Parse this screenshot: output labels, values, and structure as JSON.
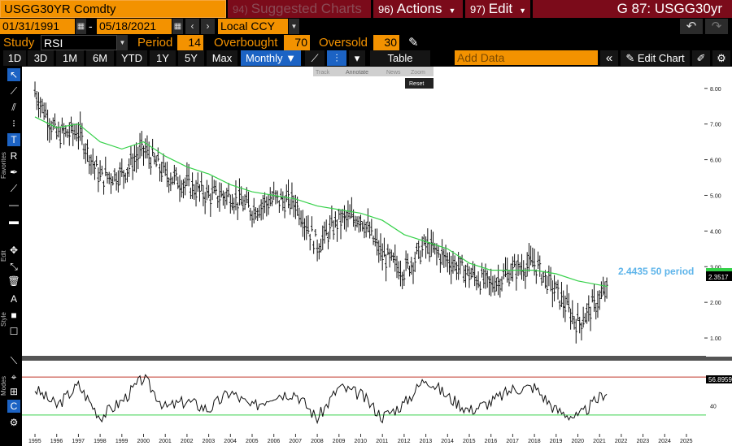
{
  "header": {
    "ticker": "USGG30YR Comdty",
    "suggested_num": "94)",
    "suggested": "Suggested Charts",
    "actions_num": "96)",
    "actions": "Actions",
    "edit_num": "97)",
    "edit": "Edit",
    "security": "G 87: USGG30yr"
  },
  "range": {
    "start": "01/31/1991",
    "sep": "-",
    "end": "05/18/2021",
    "currency": "Local CCY"
  },
  "study": {
    "study_label": "Study",
    "study_value": "RSI",
    "period_label": "Period",
    "period_value": "14",
    "overbought_label": "Overbought",
    "overbought_value": "70",
    "oversold_label": "Oversold",
    "oversold_value": "30"
  },
  "toolbar": {
    "periods": [
      "1D",
      "3D",
      "1M",
      "6M",
      "YTD",
      "1Y",
      "5Y",
      "Max"
    ],
    "frequency": "Monthly",
    "table": "Table",
    "add_data_placeholder": "Add Data",
    "edit_chart": "Edit Chart"
  },
  "zoom_toolbar": {
    "track": "Track",
    "annotate": "Annotate",
    "news": "News",
    "zoom": "Zoom",
    "reset": "Reset"
  },
  "side_labels": {
    "favorites": "Favorites",
    "edit": "Edit",
    "style": "Style",
    "modes": "Modes"
  },
  "chart_data": [
    {
      "type": "bar",
      "subtype": "ohlc",
      "series": [
        {
          "name": "USGG30YR",
          "color": "#ffffff",
          "x": [
            1995,
            1996,
            1997,
            1998,
            1999,
            2000,
            2001,
            2002,
            2003,
            2004,
            2005,
            2006,
            2007,
            2008,
            2009,
            2010,
            2011,
            2012,
            2013,
            2014,
            2015,
            2016,
            2017,
            2018,
            2019,
            2020,
            2021.37
          ],
          "values": [
            7.9,
            6.7,
            6.8,
            5.5,
            5.6,
            6.3,
            5.6,
            5.3,
            5.0,
            5.0,
            4.6,
            4.9,
            4.8,
            3.6,
            4.3,
            4.4,
            3.3,
            2.9,
            3.6,
            3.2,
            2.8,
            2.5,
            2.9,
            3.1,
            2.3,
            1.4,
            2.35
          ]
        },
        {
          "name": "50 period",
          "color": "#36d14a",
          "x": [
            1995,
            1996,
            1997,
            1998,
            1999,
            2000,
            2001,
            2002,
            2003,
            2004,
            2005,
            2006,
            2007,
            2008,
            2009,
            2010,
            2011,
            2012,
            2013,
            2014,
            2015,
            2016,
            2017,
            2018,
            2019,
            2020,
            2021.37
          ],
          "values": [
            7.2,
            6.9,
            7.0,
            6.5,
            6.3,
            6.5,
            6.1,
            5.8,
            5.6,
            5.3,
            5.1,
            5.0,
            4.9,
            4.7,
            4.6,
            4.5,
            4.3,
            3.9,
            3.7,
            3.5,
            3.1,
            2.9,
            2.9,
            2.9,
            2.8,
            2.6,
            2.4435
          ]
        }
      ],
      "ylim": [
        0.5,
        8.2
      ],
      "yticks": [
        "8.00",
        "7.00",
        "6.00",
        "5.00",
        "4.00",
        "3.00",
        "2.00",
        "1.00"
      ],
      "xticks": [
        "1995",
        "1996",
        "1997",
        "1998",
        "1999",
        "2000",
        "2001",
        "2002",
        "2003",
        "2004",
        "2005",
        "2006",
        "2007",
        "2008",
        "2009",
        "2010",
        "2011",
        "2012",
        "2013",
        "2014",
        "2015",
        "2016",
        "2017",
        "2018",
        "2019",
        "2020",
        "2021",
        "2022",
        "2023",
        "2024",
        "2025"
      ],
      "annotations": {
        "ma_label": "2.4435 50 period",
        "last_price": "2.3517"
      }
    },
    {
      "type": "line",
      "series": [
        {
          "name": "RSI",
          "color": "#ffffff",
          "x": [
            1995,
            1996,
            1997,
            1998,
            1999,
            2000,
            2001,
            2002,
            2003,
            2004,
            2005,
            2006,
            2007,
            2008,
            2009,
            2010,
            2011,
            2012,
            2013,
            2014,
            2015,
            2016,
            2017,
            2018,
            2019,
            2020,
            2021.37
          ],
          "values": [
            58,
            40,
            62,
            28,
            45,
            70,
            38,
            45,
            36,
            55,
            38,
            52,
            54,
            26,
            60,
            52,
            28,
            42,
            70,
            50,
            35,
            44,
            58,
            60,
            35,
            27,
            57
          ]
        }
      ],
      "levels": {
        "overbought": 70,
        "oversold": 30
      },
      "ytick": "40",
      "last_value": "56.8959"
    }
  ]
}
